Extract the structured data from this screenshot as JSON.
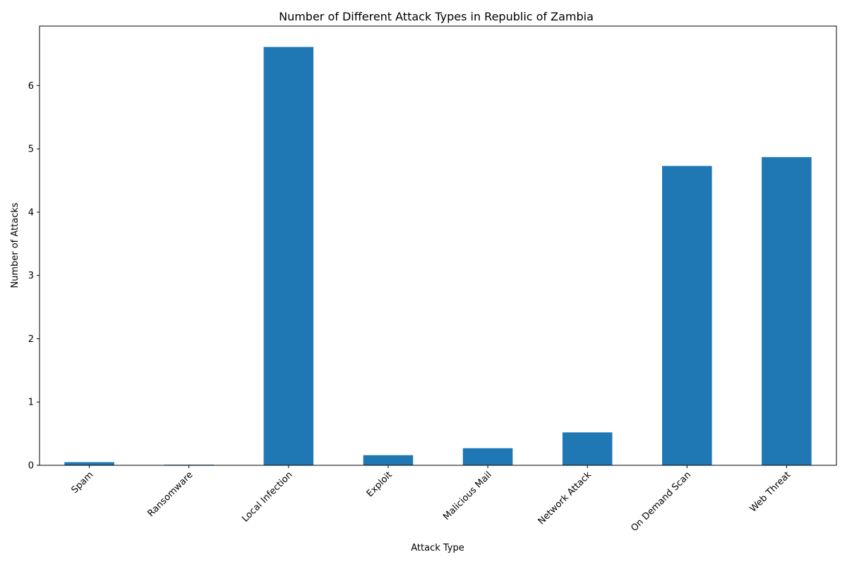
{
  "chart_data": {
    "type": "bar",
    "title": "Number of Different Attack Types in Republic of Zambia",
    "xlabel": "Attack Type",
    "ylabel": "Number of Attacks",
    "categories": [
      "Spam",
      "Ransomware",
      "Local Infection",
      "Exploit",
      "Malicious Mail",
      "Network Attack",
      "On Demand Scan",
      "Web Threat"
    ],
    "values": [
      0.05,
      0.01,
      6.61,
      0.16,
      0.27,
      0.52,
      4.73,
      4.87
    ],
    "ylim": [
      0,
      6.94
    ],
    "yticks": [
      0,
      1,
      2,
      3,
      4,
      5,
      6
    ],
    "bar_color": "#1f77b4",
    "grid": false,
    "legend": "none"
  }
}
